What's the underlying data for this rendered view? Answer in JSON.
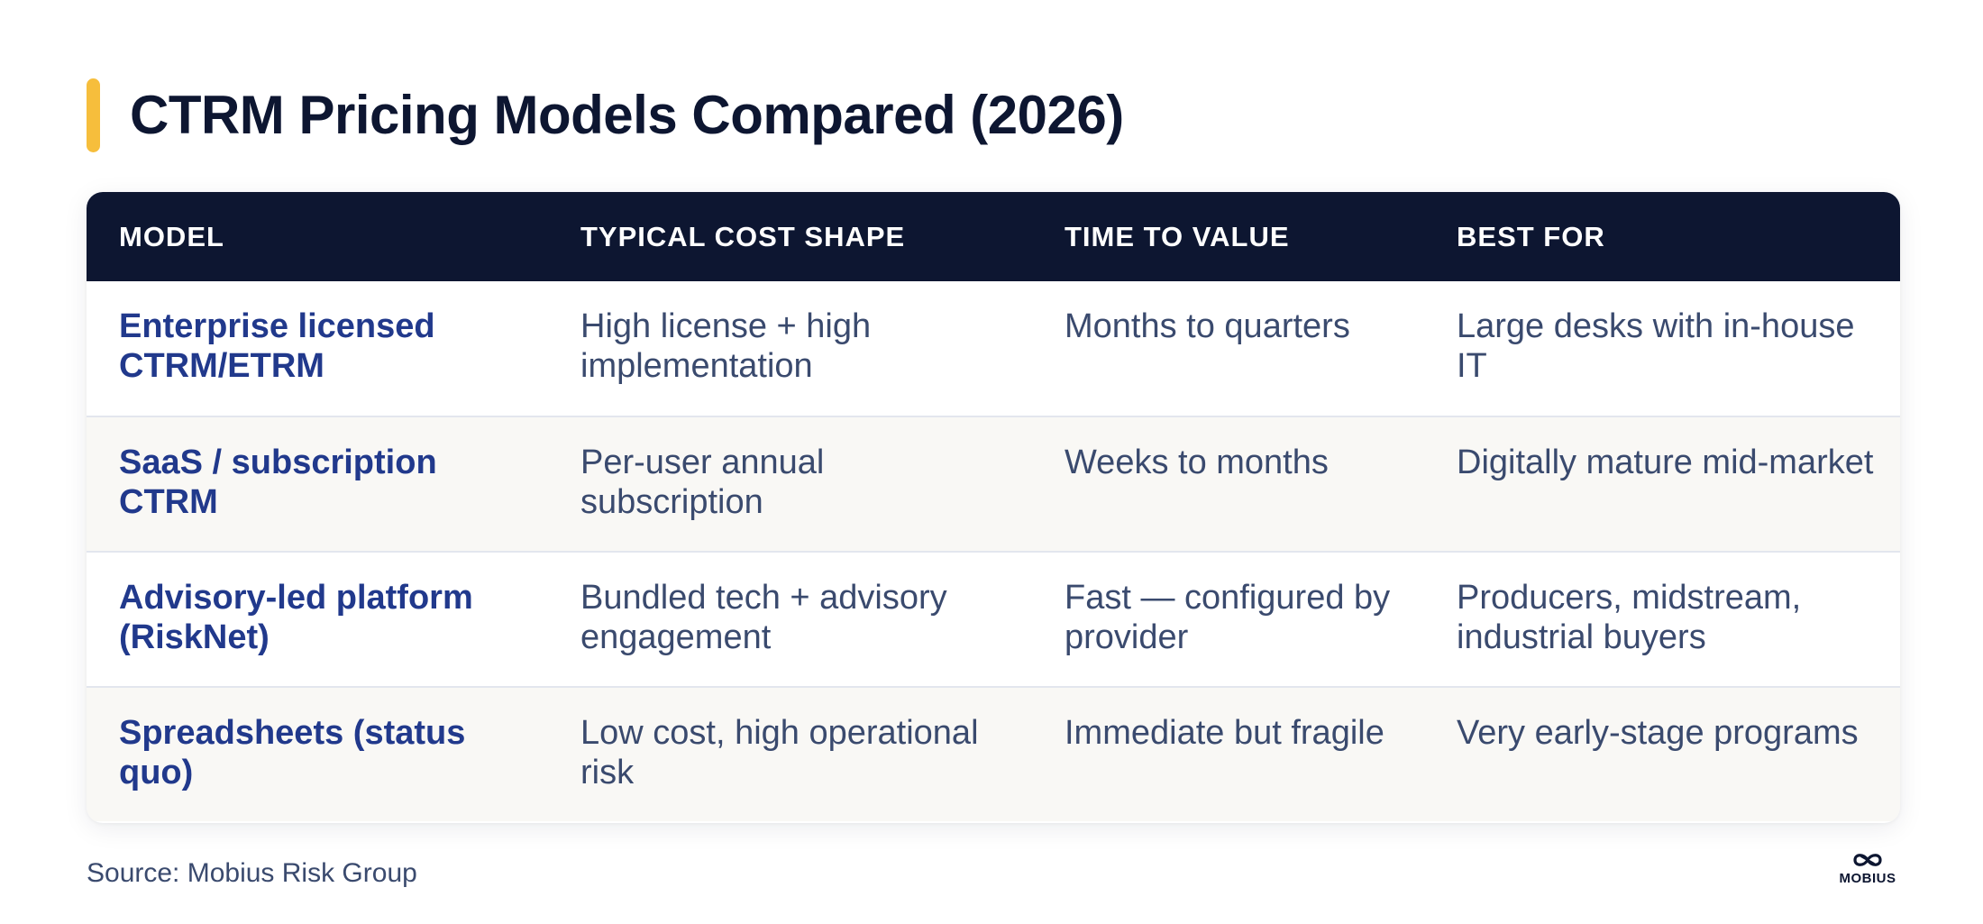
{
  "page": {
    "title": "CTRM Pricing Models Compared (2026)",
    "accent_color": "#f6be3c",
    "header_color": "#0d1631",
    "model_text_color": "#21398c"
  },
  "table": {
    "headers": [
      "MODEL",
      "TYPICAL COST SHAPE",
      "TIME TO VALUE",
      "BEST FOR"
    ],
    "rows": [
      {
        "model": "Enterprise licensed CTRM/ETRM",
        "cost_shape": "High license + high implementation",
        "time_to_value": "Months to quarters",
        "best_for": "Large desks with in-house IT"
      },
      {
        "model": "SaaS / subscription CTRM",
        "cost_shape": "Per-user annual subscription",
        "time_to_value": "Weeks to months",
        "best_for": "Digitally mature mid-market"
      },
      {
        "model": "Advisory-led platform (RiskNet)",
        "cost_shape": "Bundled tech + advisory engagement",
        "time_to_value": "Fast — configured by provider",
        "best_for": "Producers, midstream, industrial buyers"
      },
      {
        "model": "Spreadsheets (status quo)",
        "cost_shape": "Low cost, high operational risk",
        "time_to_value": "Immediate but fragile",
        "best_for": "Very early-stage programs"
      }
    ]
  },
  "footer": {
    "source": "Source: Mobius Risk Group",
    "logo_icon": "mobius-infinity-icon",
    "logo_text": "MOBIUS"
  }
}
